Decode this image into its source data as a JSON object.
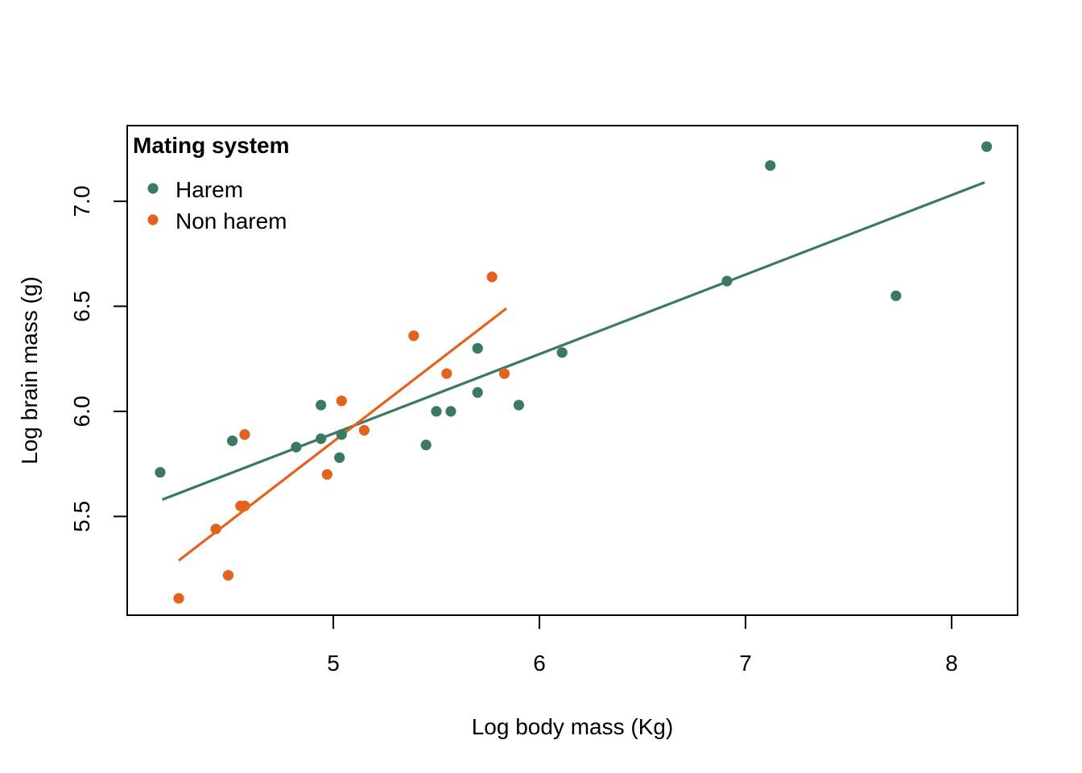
{
  "chart_data": {
    "type": "scatter",
    "title": "",
    "xlabel": "Log body mass (Kg)",
    "ylabel": "Log brain mass (g)",
    "xlim": [
      4.0,
      8.32
    ],
    "ylim": [
      5.03,
      7.36
    ],
    "x_ticks": [
      5,
      6,
      7,
      8
    ],
    "y_ticks": [
      5.5,
      6.0,
      6.5,
      7.0
    ],
    "x_tick_labels": [
      "5",
      "6",
      "7",
      "8"
    ],
    "y_tick_labels": [
      "5.5",
      "6.0",
      "6.5",
      "7.0"
    ],
    "grid": false,
    "legend": {
      "title": "Mating system",
      "position": "top-left",
      "entries": [
        "Harem",
        "Non harem"
      ]
    },
    "series": [
      {
        "name": "Harem",
        "color": "#3a7a62",
        "points": [
          [
            4.16,
            5.71
          ],
          [
            4.51,
            5.86
          ],
          [
            4.82,
            5.83
          ],
          [
            4.94,
            5.87
          ],
          [
            4.94,
            6.03
          ],
          [
            5.03,
            5.78
          ],
          [
            5.04,
            5.89
          ],
          [
            5.45,
            5.84
          ],
          [
            5.5,
            6.0
          ],
          [
            5.57,
            6.0
          ],
          [
            5.7,
            6.09
          ],
          [
            5.7,
            6.3
          ],
          [
            5.9,
            6.03
          ],
          [
            6.11,
            6.28
          ],
          [
            6.91,
            6.62
          ],
          [
            7.12,
            7.17
          ],
          [
            7.73,
            6.55
          ],
          [
            8.17,
            7.26
          ]
        ],
        "fit": [
          [
            4.17,
            5.58
          ],
          [
            8.16,
            7.09
          ]
        ]
      },
      {
        "name": "Non harem",
        "color": "#e2621e",
        "points": [
          [
            4.25,
            5.11
          ],
          [
            4.43,
            5.44
          ],
          [
            4.49,
            5.22
          ],
          [
            4.55,
            5.55
          ],
          [
            4.57,
            5.55
          ],
          [
            4.57,
            5.89
          ],
          [
            4.97,
            5.7
          ],
          [
            5.04,
            6.05
          ],
          [
            5.15,
            5.91
          ],
          [
            5.39,
            6.36
          ],
          [
            5.55,
            6.18
          ],
          [
            5.77,
            6.64
          ],
          [
            5.83,
            6.18
          ]
        ],
        "fit": [
          [
            4.25,
            5.29
          ],
          [
            5.84,
            6.49
          ]
        ]
      }
    ]
  }
}
